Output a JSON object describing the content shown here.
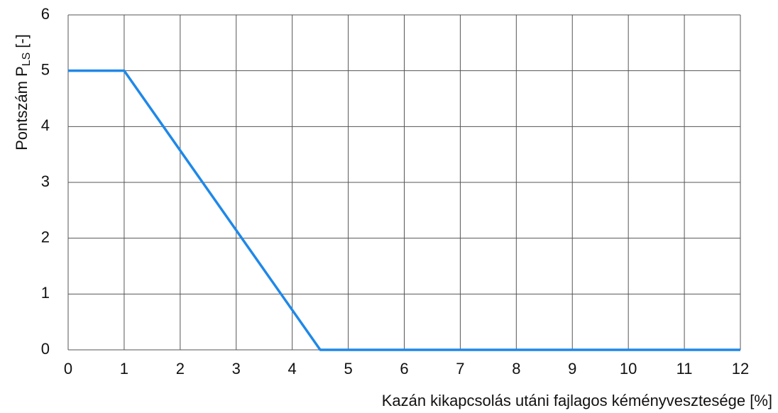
{
  "chart_data": {
    "type": "line",
    "xlabel": "Kazán kikapcsolás utáni fajlagos kéményveszteségе [%]",
    "ylabel": {
      "main": "Pontszám P",
      "subscript": "LS",
      "unit": "[-]"
    },
    "series": [
      {
        "color": "#1f88e8",
        "x": [
          0,
          1,
          4.5,
          12
        ],
        "values": [
          5,
          5,
          0,
          0
        ]
      }
    ],
    "xlim": [
      0,
      12
    ],
    "xticks": [
      0,
      1,
      2,
      3,
      4,
      5,
      6,
      7,
      8,
      9,
      10,
      11,
      12
    ],
    "ylim": [
      0,
      6
    ],
    "yticks": [
      0,
      1,
      2,
      3,
      4,
      5,
      6
    ],
    "grid": true
  }
}
